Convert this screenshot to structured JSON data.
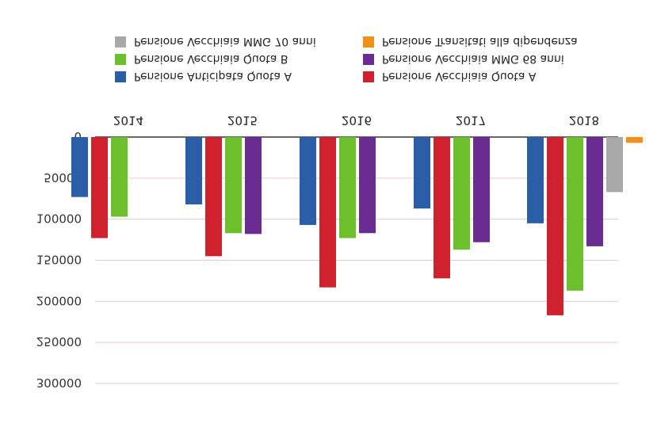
{
  "chart_data": {
    "type": "bar",
    "orientation_note_visible": "image is vertically flipped",
    "categories": [
      "2014",
      "2015",
      "2016",
      "2017",
      "2018"
    ],
    "ylim": [
      0,
      300000
    ],
    "yticks": [
      "0",
      "50000",
      "100000",
      "150000",
      "200000",
      "250000",
      "300000"
    ],
    "grid": true,
    "legend_position": "top",
    "series": [
      {
        "name": "Pensione Anticipata Quota A",
        "color": "#2a5fa8",
        "values": [
          73000,
          82000,
          107000,
          87000,
          105000
        ]
      },
      {
        "name": "Pensione Vecchiaia Quota A",
        "color": "#d0222e",
        "values": [
          123000,
          145000,
          183000,
          172000,
          217000
        ]
      },
      {
        "name": "Pensione Vecchiaia Quota B",
        "color": "#6cc02c",
        "values": [
          97000,
          117000,
          123000,
          137000,
          187000
        ]
      },
      {
        "name": "Pensione Vecchiaia MMG 68 anni",
        "color": "#6a2c91",
        "values": [
          null,
          118000,
          117000,
          128000,
          133000
        ]
      },
      {
        "name": "Pensione Vecchiaia MMG 70 anni",
        "color": "#a8a8a8",
        "values": [
          null,
          null,
          null,
          null,
          67000
        ]
      },
      {
        "name": "Pensione Transitati alla dipendenza",
        "color": "#f39019",
        "values": [
          null,
          null,
          null,
          null,
          7000
        ]
      }
    ]
  }
}
